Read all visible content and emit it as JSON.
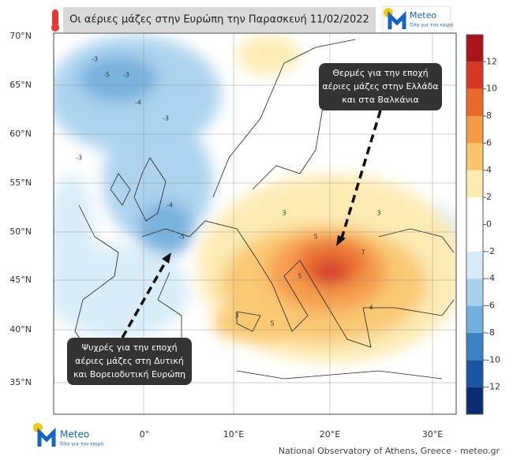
{
  "header": {
    "title": "Οι αέριες μάζες στην Ευρώπη την Παρασκευή 11/02/2022"
  },
  "logo": {
    "name": "Meteo",
    "tagline": "Όλα για τον καιρό"
  },
  "map": {
    "lat_labels": [
      "70°N",
      "65°N",
      "60°N",
      "55°N",
      "50°N",
      "45°N",
      "40°N",
      "35°N"
    ],
    "lon_labels": [
      "0°",
      "10°E",
      "20°E",
      "30°E"
    ],
    "contour_labels": [
      "-3",
      "-3",
      "-5",
      "-4",
      "-3",
      "-4",
      "-5",
      "3",
      "5",
      "7",
      "5",
      "5",
      "4",
      "3",
      "3",
      "-3"
    ]
  },
  "annotations": {
    "warm": [
      "Θερμές  για την εποχή",
      "αέριες μάζες στην Ελλάδα",
      "και στα Βαλκάνια"
    ],
    "cold": [
      "Ψυχρές για την εποχή",
      "αέριες μάζες στη Δυτική",
      "και Βορειοδυτική  Ευρώπη"
    ]
  },
  "colorbar": {
    "lim": [
      -14,
      14
    ],
    "ticks": [
      12,
      10,
      8,
      6,
      4,
      2,
      0,
      -2,
      -4,
      -6,
      -8,
      -10,
      -12
    ],
    "colors": [
      "#0b2c72",
      "#1a56a4",
      "#3a82c4",
      "#73afdd",
      "#a9d1ee",
      "#d8ecf8",
      "#ffffff",
      "#ffffff",
      "#fdeab0",
      "#f9c66c",
      "#f59a45",
      "#ea6a2a",
      "#d63624",
      "#a8141a"
    ]
  },
  "footer": {
    "credit": "National Observatory of Athens, Greece - meteo.gr"
  }
}
